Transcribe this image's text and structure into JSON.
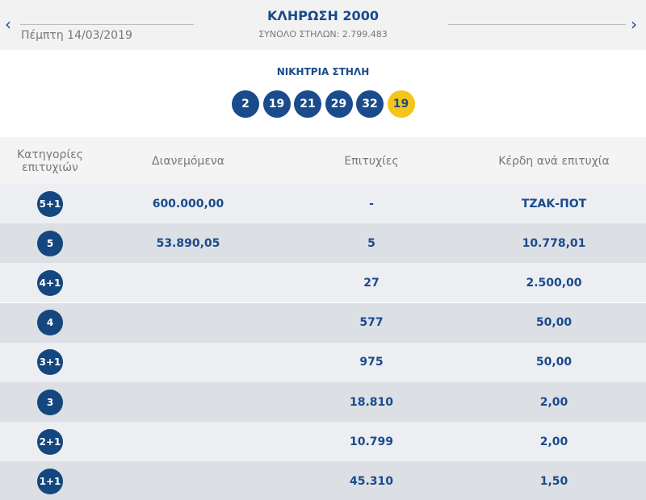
{
  "header": {
    "date": "Πέμπτη 14/03/2019",
    "title": "ΚΛΗΡΩΣΗ 2000",
    "subtitle": "ΣΥΝΟΛΟ ΣΤΗΛΩΝ: 2.799.483"
  },
  "winning": {
    "label": "ΝΙΚΗΤΡΙΑ ΣΤΗΛΗ",
    "numbers": [
      2,
      19,
      21,
      29,
      32
    ],
    "joker": 19
  },
  "table": {
    "columns": [
      "Κατηγορίες επιτυχιών",
      "Διανεμόμενα",
      "Επιτυχίες",
      "Κέρδη ανά επιτυχία"
    ],
    "rows": [
      {
        "category": "5+1",
        "distributed": "600.000,00",
        "winners": "-",
        "prize": "ΤΖΑΚ-ΠΟΤ"
      },
      {
        "category": "5",
        "distributed": "53.890,05",
        "winners": "5",
        "prize": "10.778,01"
      },
      {
        "category": "4+1",
        "winners": "27",
        "prize": "2.500,00"
      },
      {
        "category": "4",
        "winners": "577",
        "prize": "50,00"
      },
      {
        "category": "3+1",
        "winners": "975",
        "prize": "50,00"
      },
      {
        "category": "3",
        "winners": "18.810",
        "prize": "2,00"
      },
      {
        "category": "2+1",
        "winners": "10.799",
        "prize": "2,00"
      },
      {
        "category": "1+1",
        "winners": "45.310",
        "prize": "1,50"
      }
    ]
  }
}
